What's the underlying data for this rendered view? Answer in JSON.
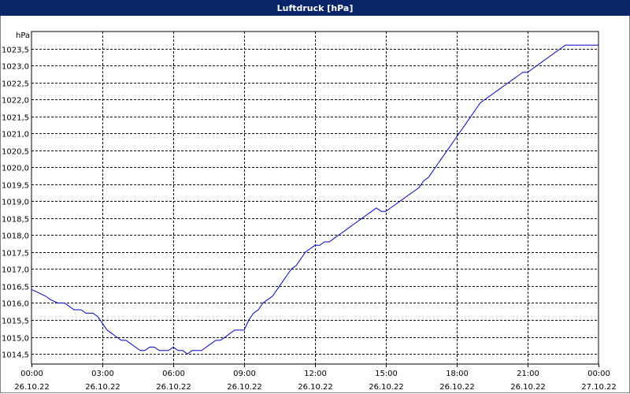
{
  "window": {
    "title": "Luftdruck [hPa]"
  },
  "colors": {
    "line": "#0000cc",
    "grid": "#000000",
    "title_bg": "#0a246a"
  },
  "chart_data": {
    "type": "line",
    "title": "Luftdruck [hPa]",
    "ylabel": "hPa",
    "xlabel": "",
    "grid": true,
    "ylim": [
      1014.2,
      1024.0
    ],
    "yticks": [
      1014.5,
      1015.0,
      1015.5,
      1016.0,
      1016.5,
      1017.0,
      1017.5,
      1018.0,
      1018.5,
      1019.0,
      1019.5,
      1020.0,
      1020.5,
      1021.0,
      1021.5,
      1022.0,
      1022.5,
      1023.0,
      1023.5
    ],
    "ytick_labels": [
      "1014,5",
      "1015,0",
      "1015,5",
      "1016,0",
      "1016,5",
      "1017,0",
      "1017,5",
      "1018,0",
      "1018,5",
      "1019,0",
      "1019,5",
      "1020,0",
      "1020,5",
      "1021,0",
      "1021,5",
      "1022,0",
      "1022,5",
      "1023,0",
      "1023,5"
    ],
    "xlim": [
      0,
      24
    ],
    "xticks": [
      {
        "time": "00:00",
        "date": "26.10.22"
      },
      {
        "time": "03:00",
        "date": "26.10.22"
      },
      {
        "time": "06:00",
        "date": "26.10.22"
      },
      {
        "time": "09:00",
        "date": "26.10.22"
      },
      {
        "time": "12:00",
        "date": "26.10.22"
      },
      {
        "time": "15:00",
        "date": "26.10.22"
      },
      {
        "time": "18:00",
        "date": "26.10.22"
      },
      {
        "time": "21:00",
        "date": "26.10.22"
      },
      {
        "time": "00:00",
        "date": "27.10.22"
      }
    ],
    "series": [
      {
        "values": [
          [
            0.0,
            1016.4
          ],
          [
            0.3,
            1016.3
          ],
          [
            0.6,
            1016.2
          ],
          [
            0.8,
            1016.1
          ],
          [
            1.1,
            1016.0
          ],
          [
            1.4,
            1016.0
          ],
          [
            1.6,
            1015.9
          ],
          [
            1.8,
            1015.8
          ],
          [
            2.1,
            1015.8
          ],
          [
            2.3,
            1015.7
          ],
          [
            2.6,
            1015.7
          ],
          [
            2.8,
            1015.6
          ],
          [
            3.0,
            1015.4
          ],
          [
            3.2,
            1015.2
          ],
          [
            3.4,
            1015.1
          ],
          [
            3.6,
            1015.0
          ],
          [
            3.8,
            1014.9
          ],
          [
            4.0,
            1014.9
          ],
          [
            4.2,
            1014.8
          ],
          [
            4.4,
            1014.7
          ],
          [
            4.6,
            1014.6
          ],
          [
            4.8,
            1014.6
          ],
          [
            5.0,
            1014.7
          ],
          [
            5.2,
            1014.7
          ],
          [
            5.4,
            1014.6
          ],
          [
            5.6,
            1014.6
          ],
          [
            5.8,
            1014.6
          ],
          [
            6.0,
            1014.7
          ],
          [
            6.2,
            1014.6
          ],
          [
            6.4,
            1014.6
          ],
          [
            6.6,
            1014.5
          ],
          [
            6.8,
            1014.6
          ],
          [
            7.0,
            1014.6
          ],
          [
            7.2,
            1014.6
          ],
          [
            7.4,
            1014.7
          ],
          [
            7.6,
            1014.8
          ],
          [
            7.8,
            1014.9
          ],
          [
            8.0,
            1014.9
          ],
          [
            8.2,
            1015.0
          ],
          [
            8.4,
            1015.1
          ],
          [
            8.6,
            1015.2
          ],
          [
            8.8,
            1015.2
          ],
          [
            9.0,
            1015.2
          ],
          [
            9.2,
            1015.5
          ],
          [
            9.4,
            1015.7
          ],
          [
            9.6,
            1015.8
          ],
          [
            9.8,
            1016.0
          ],
          [
            10.0,
            1016.1
          ],
          [
            10.2,
            1016.2
          ],
          [
            10.4,
            1016.4
          ],
          [
            10.6,
            1016.6
          ],
          [
            10.8,
            1016.8
          ],
          [
            11.0,
            1017.0
          ],
          [
            11.2,
            1017.1
          ],
          [
            11.4,
            1017.3
          ],
          [
            11.6,
            1017.5
          ],
          [
            11.8,
            1017.6
          ],
          [
            12.0,
            1017.7
          ],
          [
            12.2,
            1017.7
          ],
          [
            12.4,
            1017.8
          ],
          [
            12.6,
            1017.8
          ],
          [
            12.8,
            1017.9
          ],
          [
            13.0,
            1018.0
          ],
          [
            13.2,
            1018.1
          ],
          [
            13.4,
            1018.2
          ],
          [
            13.6,
            1018.3
          ],
          [
            13.8,
            1018.4
          ],
          [
            14.0,
            1018.5
          ],
          [
            14.2,
            1018.6
          ],
          [
            14.4,
            1018.7
          ],
          [
            14.6,
            1018.8
          ],
          [
            14.8,
            1018.7
          ],
          [
            15.0,
            1018.7
          ],
          [
            15.2,
            1018.8
          ],
          [
            15.4,
            1018.9
          ],
          [
            15.6,
            1019.0
          ],
          [
            15.8,
            1019.1
          ],
          [
            16.0,
            1019.2
          ],
          [
            16.2,
            1019.3
          ],
          [
            16.4,
            1019.4
          ],
          [
            16.6,
            1019.6
          ],
          [
            16.8,
            1019.7
          ],
          [
            17.0,
            1019.9
          ],
          [
            17.2,
            1020.1
          ],
          [
            17.4,
            1020.3
          ],
          [
            17.6,
            1020.5
          ],
          [
            17.8,
            1020.7
          ],
          [
            18.0,
            1020.9
          ],
          [
            18.2,
            1021.1
          ],
          [
            18.4,
            1021.3
          ],
          [
            18.6,
            1021.5
          ],
          [
            18.8,
            1021.7
          ],
          [
            19.0,
            1021.9
          ],
          [
            19.2,
            1022.0
          ],
          [
            19.4,
            1022.1
          ],
          [
            19.6,
            1022.2
          ],
          [
            19.8,
            1022.3
          ],
          [
            20.0,
            1022.4
          ],
          [
            20.2,
            1022.5
          ],
          [
            20.4,
            1022.6
          ],
          [
            20.6,
            1022.7
          ],
          [
            20.8,
            1022.8
          ],
          [
            21.0,
            1022.8
          ],
          [
            21.2,
            1022.9
          ],
          [
            21.4,
            1023.0
          ],
          [
            21.6,
            1023.1
          ],
          [
            21.8,
            1023.2
          ],
          [
            22.0,
            1023.3
          ],
          [
            22.2,
            1023.4
          ],
          [
            22.4,
            1023.5
          ],
          [
            22.6,
            1023.6
          ],
          [
            22.8,
            1023.6
          ],
          [
            23.0,
            1023.6
          ],
          [
            23.2,
            1023.6
          ],
          [
            23.4,
            1023.6
          ],
          [
            23.6,
            1023.6
          ],
          [
            23.8,
            1023.6
          ],
          [
            24.0,
            1023.6
          ]
        ]
      }
    ]
  }
}
